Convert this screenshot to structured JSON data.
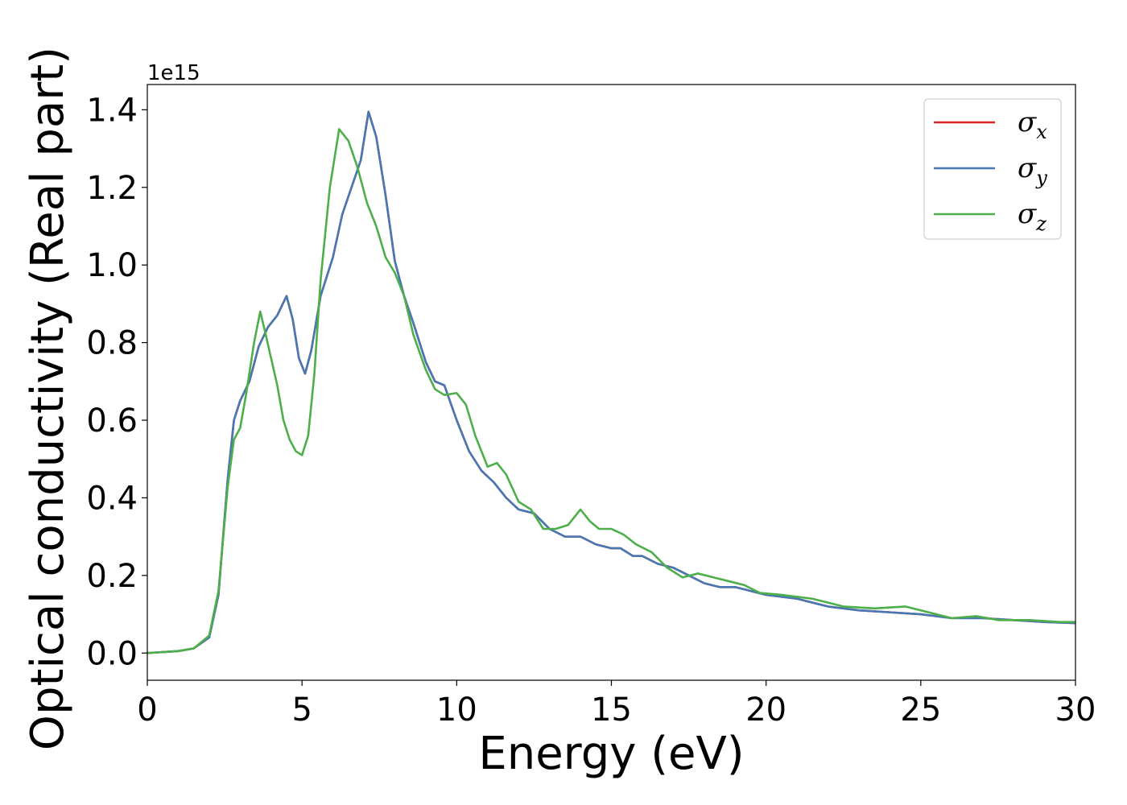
{
  "chart_data": {
    "type": "line",
    "title": "",
    "xlabel": "Energy (eV)",
    "ylabel": "Optical conductivity (Real part)",
    "y_offset_label": "1e15",
    "xlim": [
      0,
      30
    ],
    "ylim": [
      -0.07,
      1.465
    ],
    "xticks": [
      0,
      5,
      10,
      15,
      20,
      25,
      30
    ],
    "xtick_labels": [
      "0",
      "5",
      "10",
      "15",
      "20",
      "25",
      "30"
    ],
    "yticks": [
      0.0,
      0.2,
      0.4,
      0.6,
      0.8,
      1.0,
      1.2,
      1.4
    ],
    "ytick_labels": [
      "0.0",
      "0.2",
      "0.4",
      "0.6",
      "0.8",
      "1.0",
      "1.2",
      "1.4"
    ],
    "grid": false,
    "legend_position": "top-right",
    "series": [
      {
        "name": "σx",
        "legend_symbol": "σ",
        "legend_sub": "x",
        "color": "#d62728",
        "x": [
          0,
          1.0,
          1.5,
          2.0,
          2.3,
          2.6,
          2.8,
          3.0,
          3.3,
          3.6,
          3.9,
          4.2,
          4.5,
          4.7,
          4.9,
          5.1,
          5.3,
          5.6,
          6.0,
          6.3,
          6.6,
          6.9,
          7.15,
          7.4,
          7.7,
          8.0,
          8.3,
          8.6,
          9.0,
          9.3,
          9.6,
          10.0,
          10.4,
          10.8,
          11.2,
          11.6,
          12.0,
          12.5,
          13.0,
          13.5,
          14.0,
          14.5,
          15.0,
          15.3,
          15.7,
          16.0,
          16.5,
          17.0,
          17.5,
          18.0,
          18.5,
          19.0,
          19.5,
          20.0,
          21.0,
          22.0,
          23.0,
          24.0,
          25.0,
          26.0,
          27.0,
          28.0,
          29.0,
          30.0
        ],
        "y": [
          0.0,
          0.005,
          0.012,
          0.04,
          0.15,
          0.45,
          0.6,
          0.65,
          0.7,
          0.79,
          0.84,
          0.87,
          0.92,
          0.86,
          0.76,
          0.72,
          0.78,
          0.92,
          1.02,
          1.13,
          1.2,
          1.27,
          1.395,
          1.33,
          1.18,
          1.01,
          0.92,
          0.85,
          0.75,
          0.7,
          0.69,
          0.6,
          0.52,
          0.47,
          0.44,
          0.4,
          0.37,
          0.36,
          0.32,
          0.3,
          0.3,
          0.28,
          0.27,
          0.27,
          0.25,
          0.25,
          0.23,
          0.22,
          0.2,
          0.18,
          0.17,
          0.17,
          0.16,
          0.15,
          0.14,
          0.12,
          0.11,
          0.105,
          0.1,
          0.09,
          0.09,
          0.085,
          0.08,
          0.077
        ]
      },
      {
        "name": "σy",
        "legend_symbol": "σ",
        "legend_sub": "y",
        "color": "#4678b4",
        "x": [
          0,
          1.0,
          1.5,
          2.0,
          2.3,
          2.6,
          2.8,
          3.0,
          3.3,
          3.6,
          3.9,
          4.2,
          4.5,
          4.7,
          4.9,
          5.1,
          5.3,
          5.6,
          6.0,
          6.3,
          6.6,
          6.9,
          7.15,
          7.4,
          7.7,
          8.0,
          8.3,
          8.6,
          9.0,
          9.3,
          9.6,
          10.0,
          10.4,
          10.8,
          11.2,
          11.6,
          12.0,
          12.5,
          13.0,
          13.5,
          14.0,
          14.5,
          15.0,
          15.3,
          15.7,
          16.0,
          16.5,
          17.0,
          17.5,
          18.0,
          18.5,
          19.0,
          19.5,
          20.0,
          21.0,
          22.0,
          23.0,
          24.0,
          25.0,
          26.0,
          27.0,
          28.0,
          29.0,
          30.0
        ],
        "y": [
          0.0,
          0.005,
          0.012,
          0.04,
          0.15,
          0.45,
          0.6,
          0.65,
          0.7,
          0.79,
          0.84,
          0.87,
          0.92,
          0.86,
          0.76,
          0.72,
          0.78,
          0.92,
          1.02,
          1.13,
          1.2,
          1.27,
          1.395,
          1.33,
          1.18,
          1.01,
          0.92,
          0.85,
          0.75,
          0.7,
          0.69,
          0.6,
          0.52,
          0.47,
          0.44,
          0.4,
          0.37,
          0.36,
          0.32,
          0.3,
          0.3,
          0.28,
          0.27,
          0.27,
          0.25,
          0.25,
          0.23,
          0.22,
          0.2,
          0.18,
          0.17,
          0.17,
          0.16,
          0.15,
          0.14,
          0.12,
          0.11,
          0.105,
          0.1,
          0.09,
          0.09,
          0.085,
          0.08,
          0.077
        ]
      },
      {
        "name": "σz",
        "legend_symbol": "σ",
        "legend_sub": "z",
        "color": "#4daf4a",
        "x": [
          0,
          1.0,
          1.5,
          2.0,
          2.3,
          2.6,
          2.8,
          3.0,
          3.2,
          3.45,
          3.65,
          3.8,
          4.0,
          4.2,
          4.4,
          4.6,
          4.8,
          5.0,
          5.2,
          5.4,
          5.6,
          5.9,
          6.2,
          6.5,
          6.8,
          7.1,
          7.4,
          7.7,
          8.0,
          8.3,
          8.6,
          9.0,
          9.3,
          9.6,
          10.0,
          10.3,
          10.6,
          11.0,
          11.3,
          11.6,
          12.0,
          12.4,
          12.8,
          13.2,
          13.6,
          14.0,
          14.3,
          14.6,
          15.0,
          15.4,
          15.8,
          16.3,
          16.8,
          17.3,
          17.8,
          18.3,
          18.8,
          19.3,
          19.8,
          20.5,
          21.5,
          22.5,
          23.5,
          24.5,
          25.5,
          26.0,
          26.8,
          27.5,
          28.5,
          29.5,
          30.0
        ],
        "y": [
          0.0,
          0.005,
          0.012,
          0.045,
          0.16,
          0.43,
          0.55,
          0.58,
          0.67,
          0.8,
          0.88,
          0.83,
          0.76,
          0.69,
          0.6,
          0.55,
          0.52,
          0.51,
          0.56,
          0.72,
          0.96,
          1.2,
          1.35,
          1.32,
          1.25,
          1.16,
          1.1,
          1.02,
          0.98,
          0.92,
          0.82,
          0.73,
          0.68,
          0.665,
          0.67,
          0.64,
          0.56,
          0.48,
          0.49,
          0.46,
          0.39,
          0.37,
          0.32,
          0.32,
          0.33,
          0.37,
          0.34,
          0.32,
          0.32,
          0.305,
          0.28,
          0.26,
          0.22,
          0.195,
          0.205,
          0.195,
          0.185,
          0.175,
          0.155,
          0.15,
          0.14,
          0.12,
          0.115,
          0.12,
          0.1,
          0.09,
          0.095,
          0.085,
          0.085,
          0.08,
          0.08
        ]
      }
    ]
  }
}
